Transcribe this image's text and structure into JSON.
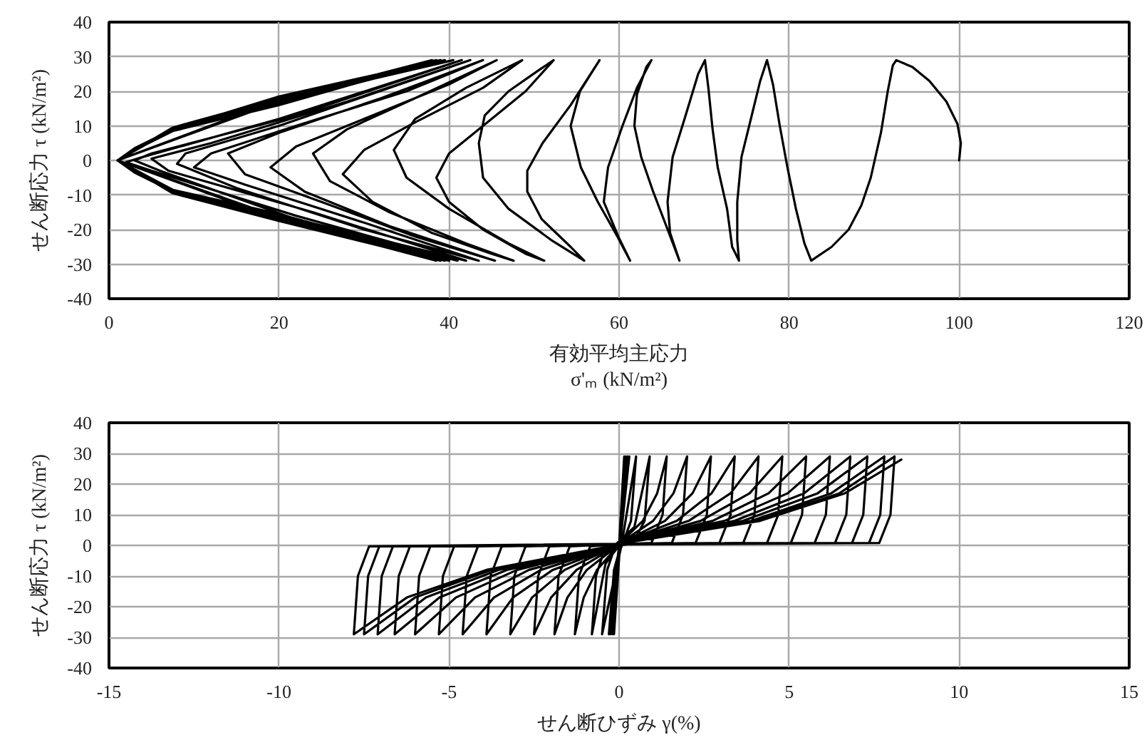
{
  "chart_data": [
    {
      "type": "line",
      "xlabel": "有効平均主応力\nσ'ₘ (kN/m²)",
      "ylabel": "せん断応力 τ (kN/m²)",
      "xlim": [
        0,
        120
      ],
      "ylim": [
        -40,
        40
      ],
      "xticks": [
        0,
        20,
        40,
        60,
        80,
        100,
        120
      ],
      "yticks": [
        -40,
        -30,
        -20,
        -10,
        0,
        10,
        20,
        30,
        40
      ],
      "grid": true,
      "series": [
        {
          "color": "#000000",
          "x": [
            100,
            100.2,
            99.8,
            98.5,
            96.5,
            94.5,
            92.6,
            92.2,
            91.6,
            90.8,
            89.6,
            88.5,
            87,
            85,
            82.6,
            81.8,
            80.8,
            79.8,
            78.9,
            78.1,
            77.4,
            76.6,
            75.5,
            74.4,
            73.9,
            73.9,
            74.1,
            73.3,
            72.7,
            71.6,
            71,
            70.5,
            70.1,
            69.3,
            67.7,
            66.3,
            65.7,
            66,
            67.1,
            65.4,
            64,
            62.6,
            61.8,
            62.1,
            63.2,
            63.8,
            62.1,
            60.4,
            58.7,
            58.2,
            59.9,
            61.3,
            59.8,
            57.5,
            55.5,
            54.3,
            55.4,
            57.7,
            54.3,
            51,
            49.2,
            49.2,
            50.9,
            54.3,
            55.9,
            52,
            47,
            44,
            43.5,
            44.2,
            47,
            50.5,
            52.3,
            49,
            44,
            40,
            38.5,
            40,
            44,
            49,
            51.2,
            47,
            40,
            35,
            33.5,
            36,
            42,
            48.6,
            44,
            36,
            30,
            27.5,
            31,
            38,
            45,
            47.6,
            42,
            33,
            26,
            24,
            28,
            36,
            45.6,
            40,
            30,
            22,
            19,
            23,
            33,
            45.4,
            36,
            25,
            16,
            14,
            20,
            32,
            44,
            35,
            22,
            12,
            10,
            16,
            30,
            43.5,
            30,
            15,
            8,
            9,
            20,
            42.5,
            28,
            12,
            5,
            7,
            24,
            42,
            22,
            6,
            3,
            5,
            22,
            41.5,
            20,
            4,
            2,
            5,
            22,
            41,
            20,
            7.5,
            3,
            1,
            3,
            7.5,
            20,
            30,
            40.5,
            30,
            20,
            7.5,
            3,
            1,
            3,
            7.5,
            20,
            30,
            40,
            20,
            7.5,
            1,
            7.5,
            20,
            39.5,
            20,
            7.5,
            1,
            7.5,
            20,
            39.5,
            20,
            7.5,
            1,
            7.5,
            20,
            39,
            20,
            7.5,
            1,
            7.5,
            20,
            39,
            20,
            1,
            20,
            38.5,
            20,
            1,
            20,
            38.5,
            20,
            1,
            20,
            38
          ],
          "values": [
            0,
            5,
            10.5,
            17,
            23,
            27,
            29,
            27.5,
            20,
            8,
            -5,
            -13,
            -20,
            -25,
            -29,
            -24,
            -14,
            -2,
            10,
            22,
            29,
            23,
            12,
            1,
            -12,
            -23,
            -29,
            -25,
            -14,
            -2,
            9,
            21,
            29,
            25,
            12,
            1,
            -12,
            -21,
            -29,
            -18,
            -9,
            1,
            10,
            19,
            27,
            29,
            21,
            10,
            -2,
            -12,
            -22,
            -29,
            -22,
            -12,
            -2,
            10,
            20,
            29,
            16,
            5,
            -3,
            -9,
            -17,
            -25,
            -29,
            -23,
            -14,
            -5,
            5,
            13,
            20,
            26,
            29,
            20,
            10,
            2,
            -5,
            -12,
            -20,
            -27,
            -29,
            -24,
            -14,
            -5,
            3,
            12,
            21,
            29,
            21,
            11,
            3,
            -4,
            -12,
            -21,
            -27,
            -29,
            -24,
            -15,
            -6,
            2,
            9,
            18,
            29,
            22,
            12,
            4,
            -2,
            -9,
            -19,
            -29,
            -22,
            -12,
            -4,
            2,
            8,
            18,
            29,
            20,
            10,
            2,
            -2,
            -7,
            -18,
            -29,
            -20,
            -8,
            -1,
            2,
            10,
            29,
            17,
            5,
            0.5,
            -3,
            -15,
            -29,
            -17,
            -3,
            0,
            2,
            13,
            29,
            12,
            1,
            -0.5,
            -3,
            -16,
            -29,
            -16,
            -9,
            -3.5,
            0,
            3.5,
            9,
            17,
            23.5,
            29,
            23,
            16,
            8.5,
            3,
            0,
            -3.5,
            -9,
            -16.5,
            -23,
            -29,
            -15.5,
            -8.5,
            0,
            9.5,
            18,
            29,
            16.5,
            9,
            0,
            -9,
            -17,
            -29,
            -16,
            -9,
            0,
            9,
            18.5,
            29,
            17.5,
            9.5,
            0,
            -9.5,
            -17.5,
            -29,
            -16.5,
            0,
            17,
            29,
            17,
            0,
            -17,
            -29,
            -16.5,
            0,
            17.5,
            29
          ]
        }
      ]
    },
    {
      "type": "line",
      "xlabel": "せん断ひずみ γ(%)",
      "ylabel": "せん断応力 τ (kN/m²)",
      "xlim": [
        -15,
        15
      ],
      "ylim": [
        -40,
        40
      ],
      "xticks": [
        -15,
        -10,
        -5,
        0,
        5,
        10,
        15
      ],
      "yticks": [
        -40,
        -30,
        -20,
        -10,
        0,
        10,
        20,
        30,
        40
      ],
      "grid": true,
      "series": [
        {
          "color": "#000000",
          "x": [
            0,
            0.15,
            -0.15,
            0.2,
            -0.2,
            0.25,
            -0.25,
            0.3,
            -0.3,
            -0.15,
            0.1,
            0.5,
            0.35,
            0.05,
            -0.5,
            -0.35,
            -0.1,
            0.45,
            0.9,
            0.75,
            0.4,
            0,
            -0.4,
            -0.8,
            -0.68,
            -0.4,
            0,
            0.7,
            1.12,
            1.4,
            1.28,
            0.95,
            0,
            -0.65,
            -1.04,
            -1.3,
            -1.18,
            -0.85,
            0,
            1,
            1.6,
            2,
            1.88,
            1.55,
            0,
            -0.95,
            -1.52,
            -1.9,
            -1.78,
            -1.45,
            0,
            1.35,
            2.16,
            2.7,
            2.58,
            2.25,
            0,
            -1.25,
            -2,
            -2.5,
            -2.38,
            -2.05,
            0,
            1.7,
            2.72,
            3.4,
            3.28,
            2.95,
            0,
            -1.6,
            -2.56,
            -3.2,
            -3.08,
            -2.75,
            0,
            2.05,
            3.28,
            4.1,
            3.98,
            3.65,
            0,
            -1.95,
            -3.12,
            -3.9,
            -3.78,
            -3.45,
            0,
            2.4,
            3.84,
            4.8,
            4.68,
            4.35,
            0,
            -2.3,
            -3.68,
            -4.6,
            -4.48,
            -4.15,
            0,
            2.75,
            4.4,
            5.5,
            5.38,
            5.05,
            0,
            -2.65,
            -4.24,
            -5.3,
            -5.18,
            -4.85,
            0,
            3.1,
            4.96,
            6.2,
            6.08,
            5.75,
            0,
            -3,
            -4.8,
            -6,
            -5.88,
            -5.55,
            0,
            3.4,
            5.44,
            6.8,
            6.68,
            6.35,
            0,
            -3.3,
            -5.28,
            -6.6,
            -6.48,
            -6.15,
            0,
            3.65,
            5.84,
            7.3,
            7.18,
            6.85,
            0,
            -3.55,
            -5.68,
            -7.1,
            -6.98,
            -6.65,
            0,
            3.9,
            6.24,
            7.8,
            7.68,
            7.35,
            0,
            -3.75,
            -6,
            -7.5,
            -7.38,
            -7.05,
            0,
            4.05,
            6.48,
            8.1,
            7.98,
            7.65,
            0,
            -3.9,
            -6.24,
            -7.8,
            -7.68,
            -7.35,
            0,
            4.15,
            6.64,
            8.3
          ],
          "values": [
            0,
            29,
            -29,
            29,
            -29,
            29,
            -29,
            29,
            -29,
            -8,
            2,
            29,
            8,
            -1,
            -29,
            -8,
            0.3,
            6,
            29,
            8,
            0.5,
            0,
            -6,
            -29,
            -10,
            -0.3,
            0.5,
            8,
            17,
            29,
            10,
            0.8,
            0.3,
            -8,
            -17,
            -29,
            -10,
            -0.3,
            0.5,
            8,
            17,
            29,
            10,
            0.8,
            0.3,
            -8,
            -17,
            -29,
            -10,
            -0.3,
            0.5,
            8,
            17,
            29,
            10,
            0.8,
            0.3,
            -8,
            -17,
            -29,
            -10,
            -0.3,
            0.5,
            8,
            17,
            29,
            10,
            0.8,
            0.3,
            -8,
            -17,
            -29,
            -10,
            -0.3,
            0.5,
            8,
            17,
            29,
            10,
            0.8,
            0.3,
            -8,
            -17,
            -29,
            -10,
            -0.3,
            0.5,
            8,
            17,
            29,
            10,
            0.8,
            0.3,
            -8,
            -17,
            -29,
            -10,
            -0.3,
            0.5,
            8,
            17,
            29,
            10,
            0.8,
            0.3,
            -8,
            -17,
            -29,
            -10,
            -0.3,
            0.5,
            8,
            17,
            29,
            10,
            0.8,
            0.3,
            -8,
            -17,
            -29,
            -10,
            -0.3,
            0.5,
            8,
            17,
            29,
            10,
            0.8,
            0.3,
            -8,
            -17,
            -29,
            -10,
            -0.3,
            0.5,
            8,
            17,
            29,
            10,
            0.8,
            0.3,
            -8,
            -17,
            -29,
            -10,
            -0.3,
            0.5,
            8,
            17,
            29,
            10,
            0.8,
            0.3,
            -8,
            -17,
            -29,
            -10,
            -0.3,
            0.5,
            8,
            17,
            29,
            10,
            0.8,
            0.3,
            -8,
            -17,
            -29,
            -10,
            -0.3,
            0.5,
            8,
            17,
            28
          ]
        }
      ]
    }
  ]
}
